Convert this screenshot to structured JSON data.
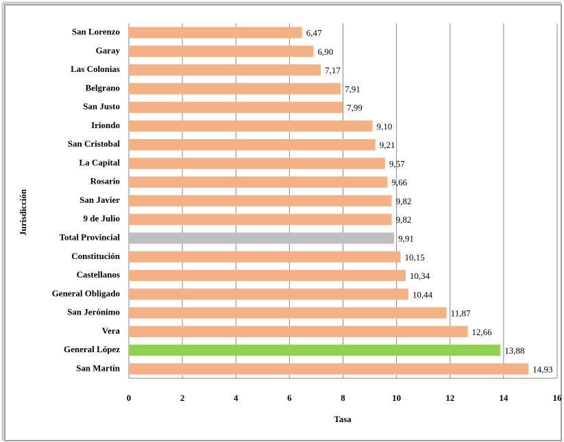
{
  "chart_data": {
    "type": "bar",
    "orientation": "horizontal",
    "x_label": "Tasa",
    "y_label": "Jurisdicción",
    "categories": [
      "San Lorenzo",
      "Garay",
      "Las Colonias",
      "Belgrano",
      "San Justo",
      "Iriondo",
      "San Cristobal",
      "La Capital",
      "Rosario",
      "San Javier",
      "9 de Julio",
      "Total Provincial",
      "Constitución",
      "Castellanos",
      "General Obligado",
      "San Jerónimo",
      "Vera",
      "General López",
      "San Martín"
    ],
    "values": [
      6.47,
      6.9,
      7.17,
      7.91,
      7.99,
      9.1,
      9.21,
      9.57,
      9.66,
      9.82,
      9.82,
      9.91,
      10.15,
      10.34,
      10.44,
      11.87,
      12.66,
      13.88,
      14.93
    ],
    "value_labels": [
      "6,47",
      "6,90",
      "7,17",
      "7,91",
      "7,99",
      "9,10",
      "9,21",
      "9,57",
      "9,66",
      "9,82",
      "9,82",
      "9,91",
      "10,15",
      "10,34",
      "10,44",
      "11,87",
      "12,66",
      "13,88",
      "14,93"
    ],
    "colors": [
      "#f4b183",
      "#f4b183",
      "#f4b183",
      "#f4b183",
      "#f4b183",
      "#f4b183",
      "#f4b183",
      "#f4b183",
      "#f4b183",
      "#f4b183",
      "#f4b183",
      "#bfbfbf",
      "#f4b183",
      "#f4b183",
      "#f4b183",
      "#f4b183",
      "#f4b183",
      "#92d050",
      "#f4b183"
    ],
    "xlim": [
      0,
      16
    ],
    "xticks": [
      0,
      2,
      4,
      6,
      8,
      10,
      12,
      14,
      16
    ],
    "grid": true
  }
}
